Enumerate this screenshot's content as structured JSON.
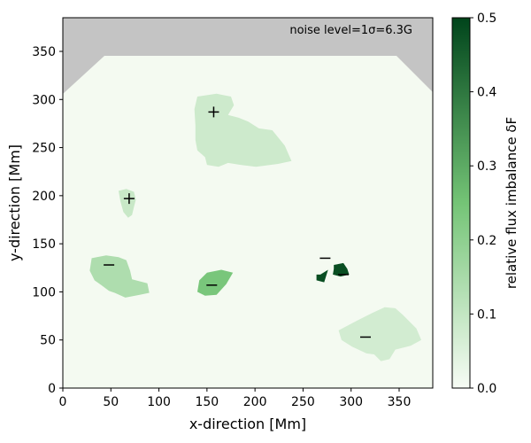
{
  "chart_data": {
    "type": "heatmap",
    "title": "",
    "xlabel": "x-direction [Mm]",
    "ylabel": "y-direction [Mm]",
    "xlim": [
      0,
      385
    ],
    "ylim": [
      0,
      385
    ],
    "xticks": [
      0,
      50,
      100,
      150,
      200,
      250,
      300,
      350
    ],
    "yticks": [
      0,
      50,
      100,
      150,
      200,
      250,
      300,
      350
    ],
    "annotation": "noise level=1σ=6.3G",
    "colorbar": {
      "label": "relative flux imbalance δF",
      "min": 0.0,
      "max": 0.5,
      "ticks": [
        "0.0",
        "0.1",
        "0.2",
        "0.3",
        "0.4",
        "0.5"
      ],
      "colormap": "Greens"
    },
    "colors": {
      "background_region": "#f4faf1",
      "masked_region": "#c4c4c4",
      "cmap_low": "#f7fcf5",
      "cmap_mid": "#74c476",
      "cmap_high": "#00441b"
    },
    "regions": [
      {
        "name": "positive-region-1",
        "polarity": "+",
        "x": 157,
        "y": 287,
        "value": 0.08,
        "outline": [
          [
            140,
            303
          ],
          [
            160,
            306
          ],
          [
            175,
            303
          ],
          [
            178,
            294
          ],
          [
            172,
            284
          ],
          [
            183,
            281
          ],
          [
            193,
            277
          ],
          [
            204,
            270
          ],
          [
            218,
            268
          ],
          [
            231,
            252
          ],
          [
            238,
            236
          ],
          [
            224,
            233
          ],
          [
            201,
            230
          ],
          [
            185,
            232
          ],
          [
            172,
            234
          ],
          [
            162,
            230
          ],
          [
            150,
            232
          ],
          [
            148,
            240
          ],
          [
            140,
            247
          ],
          [
            138,
            258
          ],
          [
            138,
            273
          ],
          [
            137,
            290
          ]
        ]
      },
      {
        "name": "positive-region-2",
        "polarity": "+",
        "x": 69,
        "y": 197,
        "value": 0.09,
        "outline": [
          [
            58,
            205
          ],
          [
            66,
            207
          ],
          [
            74,
            204
          ],
          [
            76,
            196
          ],
          [
            74,
            188
          ],
          [
            72,
            180
          ],
          [
            68,
            177
          ],
          [
            63,
            183
          ],
          [
            60,
            194
          ]
        ]
      },
      {
        "name": "negative-region-1",
        "polarity": "−",
        "x": 48,
        "y": 128,
        "value": 0.14,
        "outline": [
          [
            30,
            135
          ],
          [
            45,
            138
          ],
          [
            58,
            136
          ],
          [
            66,
            133
          ],
          [
            70,
            122
          ],
          [
            72,
            113
          ],
          [
            80,
            111
          ],
          [
            88,
            109
          ],
          [
            90,
            99
          ],
          [
            80,
            97
          ],
          [
            65,
            94
          ],
          [
            54,
            99
          ],
          [
            48,
            101
          ],
          [
            40,
            107
          ],
          [
            33,
            112
          ],
          [
            28,
            122
          ]
        ]
      },
      {
        "name": "negative-region-2",
        "polarity": "−",
        "x": 155,
        "y": 107,
        "value": 0.24,
        "outline": [
          [
            150,
            120
          ],
          [
            165,
            123
          ],
          [
            177,
            120
          ],
          [
            170,
            108
          ],
          [
            160,
            97
          ],
          [
            148,
            96
          ],
          [
            140,
            100
          ],
          [
            142,
            112
          ]
        ]
      },
      {
        "name": "negative-region-3",
        "polarity": "−",
        "x": 273,
        "y": 135,
        "value": 0.48,
        "outline": [
          [
            268,
            118
          ],
          [
            276,
            123
          ],
          [
            272,
            110
          ],
          [
            264,
            112
          ],
          [
            264,
            118
          ]
        ]
      },
      {
        "name": "negative-region-4",
        "polarity": "−",
        "x": 292,
        "y": 118,
        "value": 0.48,
        "outline": [
          [
            282,
            128
          ],
          [
            292,
            130
          ],
          [
            296,
            124
          ],
          [
            298,
            118
          ],
          [
            289,
            116
          ],
          [
            281,
            118
          ],
          [
            282,
            124
          ]
        ]
      },
      {
        "name": "negative-region-5",
        "polarity": "−",
        "x": 315,
        "y": 53,
        "value": 0.07,
        "outline": [
          [
            306,
            70
          ],
          [
            322,
            78
          ],
          [
            335,
            84
          ],
          [
            346,
            83
          ],
          [
            354,
            76
          ],
          [
            368,
            62
          ],
          [
            373,
            50
          ],
          [
            362,
            44
          ],
          [
            346,
            40
          ],
          [
            340,
            30
          ],
          [
            331,
            28
          ],
          [
            324,
            35
          ],
          [
            316,
            36
          ],
          [
            301,
            43
          ],
          [
            290,
            50
          ],
          [
            287,
            60
          ]
        ]
      }
    ]
  }
}
